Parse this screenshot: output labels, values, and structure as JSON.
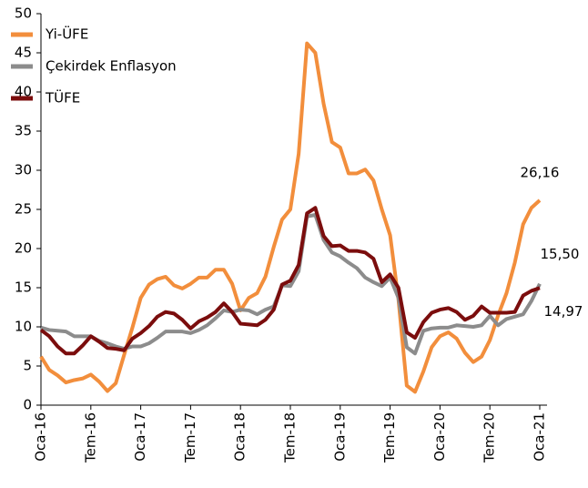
{
  "chart_data": {
    "type": "line",
    "categories": [
      "Oca-16",
      null,
      null,
      null,
      null,
      null,
      "Tem-16",
      null,
      null,
      null,
      null,
      null,
      "Oca-17",
      null,
      null,
      null,
      null,
      null,
      "Tem-17",
      null,
      null,
      null,
      null,
      null,
      "Oca-18",
      null,
      null,
      null,
      null,
      null,
      "Tem-18",
      null,
      null,
      null,
      null,
      null,
      "Oca-19",
      null,
      null,
      null,
      null,
      null,
      "Tem-19",
      null,
      null,
      null,
      null,
      null,
      "Oca-20",
      null,
      null,
      null,
      null,
      null,
      "Tem-20",
      null,
      null,
      null,
      null,
      null,
      "Oca-21"
    ],
    "series": [
      {
        "name": "Yi-ÜFE",
        "color": "#f28e3c",
        "values": [
          6.2,
          4.5,
          3.8,
          2.9,
          3.2,
          3.4,
          3.9,
          3.0,
          1.8,
          2.8,
          6.4,
          9.9,
          13.7,
          15.4,
          16.1,
          16.4,
          15.3,
          14.9,
          15.5,
          16.3,
          16.3,
          17.3,
          17.3,
          15.5,
          12.1,
          13.7,
          14.3,
          16.4,
          20.2,
          23.7,
          25.0,
          32.1,
          46.2,
          45.0,
          38.5,
          33.6,
          32.9,
          29.6,
          29.6,
          30.1,
          28.7,
          25.0,
          21.7,
          13.5,
          2.5,
          1.7,
          4.3,
          7.4,
          8.8,
          9.3,
          8.5,
          6.7,
          5.5,
          6.2,
          8.3,
          11.5,
          14.3,
          18.2,
          23.1,
          25.2,
          26.16
        ],
        "value_labels": [
          null,
          null,
          null,
          null,
          null,
          null,
          null,
          null,
          null,
          null,
          null,
          null,
          null,
          null,
          null,
          null,
          null,
          null,
          null,
          null,
          null,
          null,
          null,
          null,
          null,
          null,
          null,
          null,
          null,
          null,
          null,
          null,
          null,
          null,
          null,
          null,
          null,
          null,
          null,
          null,
          null,
          null,
          null,
          null,
          null,
          null,
          null,
          null,
          null,
          null,
          null,
          null,
          null,
          null,
          null,
          null,
          null,
          null,
          null,
          null,
          "26,16"
        ]
      },
      {
        "name": "Çekirdek Enflasyon",
        "color": "#8c8c8c",
        "values": [
          9.9,
          9.6,
          9.5,
          9.4,
          8.8,
          8.8,
          8.8,
          8.2,
          7.9,
          7.5,
          7.2,
          7.5,
          7.5,
          7.9,
          8.6,
          9.4,
          9.4,
          9.4,
          9.2,
          9.6,
          10.2,
          11.1,
          12.1,
          11.9,
          12.2,
          12.1,
          11.6,
          12.2,
          12.6,
          15.3,
          15.2,
          17.1,
          24.1,
          24.3,
          21.1,
          19.5,
          19.0,
          18.2,
          17.5,
          16.3,
          15.7,
          15.2,
          16.3,
          13.7,
          7.4,
          6.6,
          9.5,
          9.8,
          9.9,
          9.9,
          10.2,
          10.1,
          10.0,
          10.2,
          11.4,
          10.2,
          11.0,
          11.3,
          11.6,
          13.3,
          15.5
        ],
        "value_labels": [
          null,
          null,
          null,
          null,
          null,
          null,
          null,
          null,
          null,
          null,
          null,
          null,
          null,
          null,
          null,
          null,
          null,
          null,
          null,
          null,
          null,
          null,
          null,
          null,
          null,
          null,
          null,
          null,
          null,
          null,
          null,
          null,
          null,
          null,
          null,
          null,
          null,
          null,
          null,
          null,
          null,
          null,
          null,
          null,
          null,
          null,
          null,
          null,
          null,
          null,
          null,
          null,
          null,
          null,
          null,
          null,
          null,
          null,
          null,
          null,
          "15,50"
        ]
      },
      {
        "name": "TÜFE",
        "color": "#7b0d0d",
        "values": [
          9.6,
          8.8,
          7.5,
          6.6,
          6.6,
          7.6,
          8.8,
          8.1,
          7.3,
          7.2,
          7.0,
          8.5,
          9.2,
          10.1,
          11.3,
          11.9,
          11.7,
          10.9,
          9.8,
          10.7,
          11.2,
          11.9,
          13.0,
          11.9,
          10.4,
          10.3,
          10.2,
          10.9,
          12.2,
          15.4,
          15.9,
          17.9,
          24.5,
          25.2,
          21.6,
          20.3,
          20.4,
          19.7,
          19.7,
          19.5,
          18.7,
          15.7,
          16.7,
          15.0,
          9.3,
          8.6,
          10.6,
          11.8,
          12.2,
          12.4,
          11.9,
          10.9,
          11.4,
          12.6,
          11.8,
          11.8,
          11.8,
          11.9,
          14.0,
          14.6,
          14.97
        ],
        "value_labels": [
          null,
          null,
          null,
          null,
          null,
          null,
          null,
          null,
          null,
          null,
          null,
          null,
          null,
          null,
          null,
          null,
          null,
          null,
          null,
          null,
          null,
          null,
          null,
          null,
          null,
          null,
          null,
          null,
          null,
          null,
          null,
          null,
          null,
          null,
          null,
          null,
          null,
          null,
          null,
          null,
          null,
          null,
          null,
          null,
          null,
          null,
          null,
          null,
          null,
          null,
          null,
          null,
          null,
          null,
          null,
          null,
          null,
          null,
          null,
          null,
          "14,97"
        ]
      }
    ],
    "ylim": [
      0,
      50
    ],
    "yticks": [
      0,
      5,
      10,
      15,
      20,
      25,
      30,
      35,
      40,
      45,
      50
    ],
    "legend": "top-left",
    "grid": false
  }
}
